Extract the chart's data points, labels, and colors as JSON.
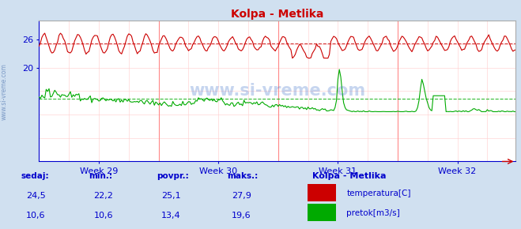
{
  "title": "Kolpa - Metlika",
  "title_color": "#cc0000",
  "bg_color": "#d0e0f0",
  "plot_bg_color": "#ffffff",
  "text_color": "#0000cc",
  "watermark": "www.si-vreme.com",
  "week_labels": [
    "Week 29",
    "Week 30",
    "Week 31",
    "Week 32"
  ],
  "ylim": [
    0,
    30
  ],
  "yticks": [
    20,
    26
  ],
  "temp_avg": 25.1,
  "flow_avg": 13.4,
  "temp_color": "#cc0000",
  "flow_color": "#00aa00",
  "legend_title": "Kolpa - Metlika",
  "legend_items": [
    "temperatura[C]",
    "pretok[m3/s]"
  ],
  "legend_colors": [
    "#cc0000",
    "#00aa00"
  ],
  "stats_headers": [
    "sedaj:",
    "min.:",
    "povpr.:",
    "maks.:"
  ],
  "stats_temp": [
    "24,5",
    "22,2",
    "25,1",
    "27,9"
  ],
  "stats_flow": [
    "10,6",
    "10,6",
    "13,4",
    "19,6"
  ],
  "n_points": 336,
  "week_boundary_indices": [
    84,
    168,
    252
  ],
  "week_label_indices": [
    42,
    126,
    210,
    294
  ]
}
